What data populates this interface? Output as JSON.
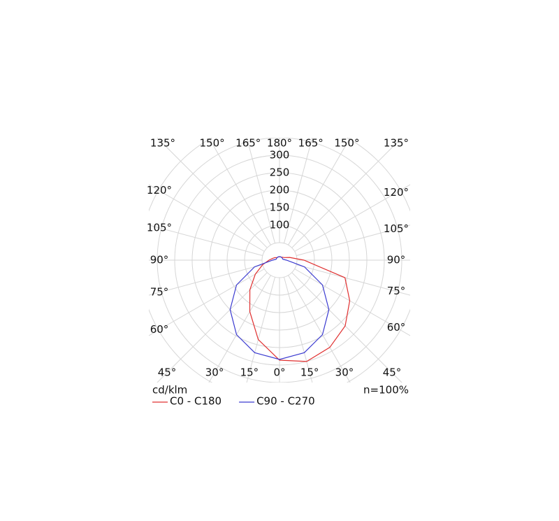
{
  "chart_data": {
    "type": "polar",
    "x": [
      -180,
      -165,
      -150,
      -135,
      -120,
      -105,
      -90,
      -75,
      -60,
      -45,
      -30,
      -15,
      0,
      15,
      30,
      45,
      60,
      75,
      90,
      105,
      120,
      135,
      150,
      165,
      180
    ],
    "series": [
      {
        "name": "C0 - C180",
        "color": "#e03030",
        "values": [
          10,
          10,
          10,
          10,
          15,
          20,
          30,
          50,
          80,
          120,
          170,
          235,
          286,
          300,
          288,
          266,
          232,
          194,
          70,
          30,
          15,
          12,
          10,
          10,
          10
        ]
      },
      {
        "name": "C90 - C270",
        "color": "#3a3ad0",
        "values": [
          10,
          10,
          10,
          10,
          10,
          10,
          20,
          74,
          142,
          200,
          246,
          274,
          284,
          274,
          246,
          200,
          142,
          74,
          20,
          10,
          10,
          10,
          10,
          10,
          10
        ]
      }
    ],
    "rlim": [
      0,
      300
    ],
    "rticks": [
      100,
      150,
      200,
      250,
      300
    ],
    "rgrid": [
      50,
      100,
      150,
      200,
      250,
      300,
      350,
      400
    ],
    "angle_ticks": [
      {
        "value": -165,
        "label": "165°"
      },
      {
        "value": -150,
        "label": "150°"
      },
      {
        "value": -135,
        "label": "135°"
      },
      {
        "value": -120,
        "label": "120°"
      },
      {
        "value": -105,
        "label": "105°"
      },
      {
        "value": -90,
        "label": "90°"
      },
      {
        "value": -75,
        "label": "75°"
      },
      {
        "value": -60,
        "label": "60°"
      },
      {
        "value": -45,
        "label": "45°"
      },
      {
        "value": -30,
        "label": "30°"
      },
      {
        "value": -15,
        "label": "15°"
      },
      {
        "value": 0,
        "label": "0°"
      },
      {
        "value": 15,
        "label": "15°"
      },
      {
        "value": 30,
        "label": "30°"
      },
      {
        "value": 45,
        "label": "45°"
      },
      {
        "value": 60,
        "label": "60°"
      },
      {
        "value": 75,
        "label": "75°"
      },
      {
        "value": 90,
        "label": "90°"
      },
      {
        "value": 105,
        "label": "105°"
      },
      {
        "value": 120,
        "label": "120°"
      },
      {
        "value": 135,
        "label": "135°"
      },
      {
        "value": 150,
        "label": "150°"
      },
      {
        "value": 165,
        "label": "165°"
      },
      {
        "value": 180,
        "label": "180°"
      }
    ],
    "unit": "cd/klm",
    "efficiency": "n=100%"
  }
}
